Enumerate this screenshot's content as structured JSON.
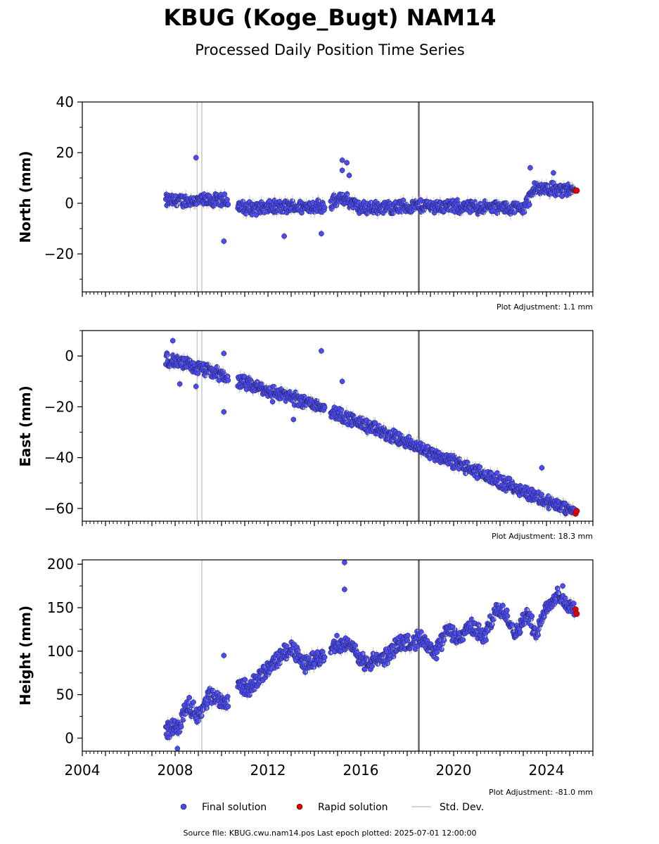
{
  "header": {
    "title": "KBUG (Koge_Bugt) NAM14",
    "subtitle": "Processed Daily Position Time Series"
  },
  "footer": {
    "source": "Source file: KBUG.cwu.nam14.pos  Last epoch plotted: 2025-07-01 12:00:00"
  },
  "legend": {
    "final": "Final solution",
    "rapid": "Rapid solution",
    "std": "Std. Dev."
  },
  "colors": {
    "final": "#4b4bf0",
    "rapid": "#e00000",
    "std": "#c8c8c8",
    "event_line": "#666666"
  },
  "chart_data": [
    {
      "type": "scatter",
      "ylabel": "North (mm)",
      "xlim": [
        2004,
        2026
      ],
      "ylim": [
        -35,
        40
      ],
      "yticks": [
        -20,
        0,
        20,
        40
      ],
      "adjustment": "Plot Adjustment: 1.1 mm",
      "event_lines": [
        2018.5
      ],
      "std_lines": [
        2008.95,
        2009.15
      ],
      "gaps": [
        [
          2010.3,
          2010.7
        ],
        [
          2014.45,
          2014.7
        ]
      ],
      "start": 2007.6,
      "end": 2025.2,
      "trend": [
        [
          2007.6,
          1
        ],
        [
          2010.3,
          1
        ],
        [
          2011,
          -2
        ],
        [
          2014.4,
          -1
        ],
        [
          2014.7,
          0
        ],
        [
          2015.3,
          2
        ],
        [
          2016,
          -2
        ],
        [
          2018.5,
          -1
        ],
        [
          2023,
          -2
        ],
        [
          2023.5,
          6
        ],
        [
          2025.3,
          5
        ]
      ],
      "scatter_amp": 2.5,
      "series": [
        {
          "name": "Final solution",
          "points": [
            [
              2008.9,
              18
            ],
            [
              2010.1,
              -15
            ],
            [
              2015.2,
              17
            ],
            [
              2015.2,
              13
            ],
            [
              2015.4,
              16
            ],
            [
              2015.5,
              11
            ],
            [
              2012.7,
              -13
            ],
            [
              2014.3,
              -12
            ],
            [
              2023.3,
              14
            ],
            [
              2024.3,
              12
            ]
          ]
        },
        {
          "name": "Rapid solution",
          "points": [
            [
              2025.25,
              5
            ],
            [
              2025.3,
              5
            ]
          ]
        }
      ]
    },
    {
      "type": "scatter",
      "ylabel": "East (mm)",
      "xlim": [
        2004,
        2026
      ],
      "ylim": [
        -65,
        10
      ],
      "yticks": [
        -60,
        -40,
        -20,
        0
      ],
      "adjustment": "Plot Adjustment: 18.3 mm",
      "event_lines": [
        2018.5
      ],
      "std_lines": [
        2008.95,
        2009.15
      ],
      "gaps": [
        [
          2010.3,
          2010.7
        ],
        [
          2014.45,
          2014.7
        ]
      ],
      "start": 2007.6,
      "end": 2025.2,
      "trend": [
        [
          2007.6,
          -1
        ],
        [
          2010.2,
          -8
        ],
        [
          2010.7,
          -10
        ],
        [
          2014.4,
          -20
        ],
        [
          2014.8,
          -22
        ],
        [
          2018.5,
          -36
        ],
        [
          2025.3,
          -62
        ]
      ],
      "scatter_amp": 2.5,
      "series": [
        {
          "name": "Final solution",
          "points": [
            [
              2007.9,
              6
            ],
            [
              2008.2,
              -11
            ],
            [
              2008.9,
              -12
            ],
            [
              2010.1,
              1
            ],
            [
              2010.1,
              -22
            ],
            [
              2014.3,
              2
            ],
            [
              2015.2,
              -10
            ],
            [
              2013.1,
              -25
            ],
            [
              2012.2,
              -18
            ],
            [
              2023.8,
              -44
            ]
          ]
        },
        {
          "name": "Rapid solution",
          "points": [
            [
              2025.25,
              -62
            ],
            [
              2025.3,
              -61
            ]
          ]
        }
      ]
    },
    {
      "type": "scatter",
      "ylabel": "Height (mm)",
      "xlabel": "",
      "xlim": [
        2004,
        2026
      ],
      "ylim": [
        -15,
        205
      ],
      "yticks": [
        0,
        50,
        100,
        150,
        200
      ],
      "xticks": [
        2004,
        2008,
        2012,
        2016,
        2020,
        2024
      ],
      "adjustment": "Plot Adjustment: -81.0 mm",
      "event_lines": [
        2018.5
      ],
      "std_lines": [
        2009.15
      ],
      "gaps": [
        [
          2010.3,
          2010.7
        ],
        [
          2014.45,
          2014.7
        ]
      ],
      "start": 2007.6,
      "end": 2025.2,
      "trend": [
        [
          2007.6,
          10
        ],
        [
          2008.2,
          15
        ],
        [
          2008.5,
          40
        ],
        [
          2009,
          25
        ],
        [
          2009.5,
          50
        ],
        [
          2010.2,
          40
        ],
        [
          2010.7,
          65
        ],
        [
          2011.1,
          55
        ],
        [
          2012.2,
          85
        ],
        [
          2013,
          105
        ],
        [
          2013.5,
          85
        ],
        [
          2014.4,
          95
        ],
        [
          2014.8,
          110
        ],
        [
          2015.6,
          105
        ],
        [
          2016.2,
          85
        ],
        [
          2017.2,
          95
        ],
        [
          2017.6,
          110
        ],
        [
          2018.1,
          110
        ],
        [
          2018.6,
          115
        ],
        [
          2019.2,
          95
        ],
        [
          2019.7,
          125
        ],
        [
          2020.2,
          115
        ],
        [
          2020.8,
          130
        ],
        [
          2021.3,
          115
        ],
        [
          2021.8,
          145
        ],
        [
          2022.2,
          145
        ],
        [
          2022.7,
          120
        ],
        [
          2023.2,
          145
        ],
        [
          2023.5,
          120
        ],
        [
          2024.0,
          150
        ],
        [
          2024.5,
          165
        ],
        [
          2025.0,
          150
        ],
        [
          2025.3,
          147
        ]
      ],
      "scatter_amp": 9,
      "series": [
        {
          "name": "Final solution",
          "points": [
            [
              2015.3,
              202
            ],
            [
              2015.3,
              171
            ],
            [
              2010.1,
              95
            ],
            [
              2008.1,
              -12
            ],
            [
              2024.7,
              175
            ]
          ]
        },
        {
          "name": "Rapid solution",
          "points": [
            [
              2025.25,
              148
            ],
            [
              2025.3,
              143
            ]
          ]
        }
      ]
    }
  ]
}
